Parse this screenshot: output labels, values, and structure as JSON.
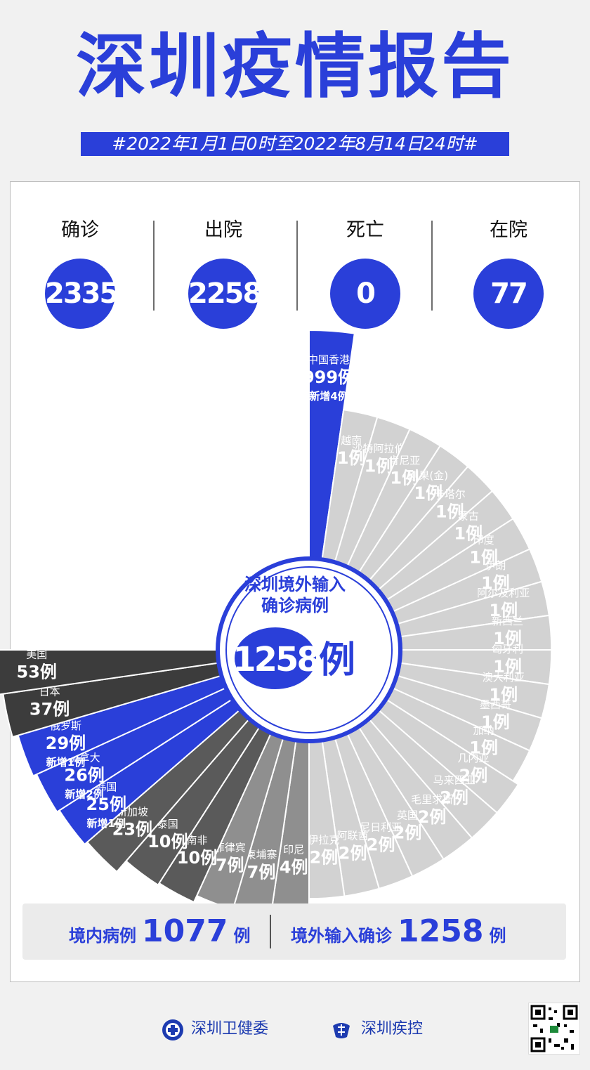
{
  "header": {
    "title": "深圳疫情报告",
    "date_range": "#2022年1月1日0时至2022年8月14日24时#"
  },
  "stats": [
    {
      "label": "确诊",
      "value": "2335"
    },
    {
      "label": "出院",
      "value": "2258"
    },
    {
      "label": "死亡",
      "value": "0"
    },
    {
      "label": "在院",
      "value": "77"
    }
  ],
  "center": {
    "line1": "深圳境外输入",
    "line2": "确诊病例",
    "total": "1258",
    "unit": "例"
  },
  "bottom": {
    "domestic_label": "境内病例",
    "domestic_value": "1077",
    "domestic_unit": "例",
    "imported_label": "境外输入确诊",
    "imported_value": "1258",
    "imported_unit": "例"
  },
  "footer": {
    "org1": "深圳卫健委",
    "org2": "深圳疾控"
  },
  "colors": {
    "blue": "#2a3fd9",
    "dark": "#3c3c3c",
    "mid": "#5a5a5a",
    "gray": "#8f8f8f",
    "light": "#d2d2d2"
  },
  "chart_data": {
    "type": "pie",
    "title": "深圳境外输入确诊病例",
    "unit": "例",
    "categories": [
      "中国香港",
      "越南",
      "沙特阿拉伯",
      "肯尼亚",
      "刚果(金)",
      "卡塔尔",
      "蒙古",
      "印度",
      "伊朗",
      "阿尔及利亚",
      "新西兰",
      "匈牙利",
      "澳大利亚",
      "墨西哥",
      "加纳",
      "几内亚",
      "马来西亚",
      "毛里求斯",
      "英国",
      "尼日利亚",
      "阿联酋",
      "伊拉克",
      "印尼",
      "柬埔寨",
      "菲律宾",
      "南非",
      "泰国",
      "新加坡",
      "韩国",
      "加拿大",
      "俄罗斯",
      "日本",
      "美国"
    ],
    "values": [
      999,
      1,
      1,
      1,
      1,
      1,
      1,
      1,
      1,
      1,
      1,
      1,
      1,
      1,
      1,
      2,
      2,
      2,
      2,
      2,
      2,
      2,
      4,
      7,
      7,
      10,
      10,
      23,
      25,
      26,
      29,
      37,
      53
    ],
    "value_labels": [
      "999例",
      "1例",
      "1例",
      "1例",
      "1例",
      "1例",
      "1例",
      "1例",
      "1例",
      "1例",
      "1例",
      "1例",
      "1例",
      "1例",
      "1例",
      "2例",
      "2例",
      "2例",
      "2例",
      "2例",
      "2例",
      "2例",
      "4例",
      "7例",
      "7例",
      "10例",
      "10例",
      "23例",
      "25例",
      "26例",
      "29例",
      "37例",
      "53例"
    ],
    "new_cases": [
      "新增4例",
      "",
      "",
      "",
      "",
      "",
      "",
      "",
      "",
      "",
      "",
      "",
      "",
      "",
      "",
      "",
      "",
      "",
      "",
      "",
      "",
      "",
      "",
      "",
      "",
      "",
      "",
      "",
      "新增1例",
      "新增2例",
      "新增1例",
      "",
      ""
    ],
    "color_group": [
      "blue",
      "light",
      "light",
      "light",
      "light",
      "light",
      "light",
      "light",
      "light",
      "light",
      "light",
      "light",
      "light",
      "light",
      "light",
      "light",
      "light",
      "light",
      "light",
      "light",
      "light",
      "light",
      "gray",
      "gray",
      "gray",
      "mid",
      "mid",
      "mid",
      "blue",
      "blue",
      "blue",
      "dark",
      "dark"
    ]
  }
}
